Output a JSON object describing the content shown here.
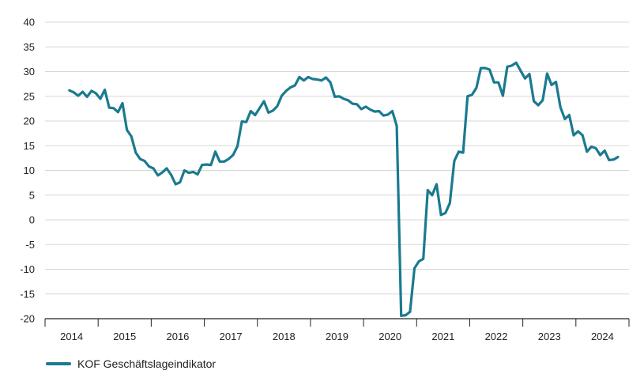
{
  "chart_data": {
    "type": "line",
    "title": "",
    "xlabel": "",
    "ylabel": "",
    "ylim": [
      -20,
      40
    ],
    "yticks": [
      40,
      35,
      30,
      25,
      20,
      15,
      10,
      5,
      0,
      -5,
      -10,
      -15,
      -20
    ],
    "year_labels": [
      "2014",
      "2015",
      "2016",
      "2017",
      "2018",
      "2019",
      "2020",
      "2021",
      "2022",
      "2023",
      "2024"
    ],
    "grid": true,
    "legend_position": "bottom-left",
    "series": [
      {
        "name": "KOF Geschäftslageindikator",
        "color": "#1b7a8f",
        "points": [
          [
            "2013-12",
            26.2
          ],
          [
            "2014-01",
            25.8
          ],
          [
            "2014-02",
            25.1
          ],
          [
            "2014-03",
            25.9
          ],
          [
            "2014-04",
            24.9
          ],
          [
            "2014-05",
            26.1
          ],
          [
            "2014-06",
            25.6
          ],
          [
            "2014-07",
            24.5
          ],
          [
            "2014-08",
            26.3
          ],
          [
            "2014-09",
            22.7
          ],
          [
            "2014-10",
            22.6
          ],
          [
            "2014-11",
            21.8
          ],
          [
            "2014-12",
            23.6
          ],
          [
            "2015-01",
            18.2
          ],
          [
            "2015-02",
            16.9
          ],
          [
            "2015-03",
            13.6
          ],
          [
            "2015-04",
            12.3
          ],
          [
            "2015-05",
            11.9
          ],
          [
            "2015-06",
            10.8
          ],
          [
            "2015-07",
            10.4
          ],
          [
            "2015-08",
            9.0
          ],
          [
            "2015-09",
            9.6
          ],
          [
            "2015-10",
            10.4
          ],
          [
            "2015-11",
            9.1
          ],
          [
            "2015-12",
            7.2
          ],
          [
            "2016-01",
            7.6
          ],
          [
            "2016-02",
            10.0
          ],
          [
            "2016-03",
            9.5
          ],
          [
            "2016-04",
            9.7
          ],
          [
            "2016-05",
            9.2
          ],
          [
            "2016-06",
            11.1
          ],
          [
            "2016-07",
            11.2
          ],
          [
            "2016-08",
            11.1
          ],
          [
            "2016-09",
            13.8
          ],
          [
            "2016-10",
            11.8
          ],
          [
            "2016-11",
            11.8
          ],
          [
            "2016-12",
            12.3
          ],
          [
            "2017-01",
            13.1
          ],
          [
            "2017-02",
            14.9
          ],
          [
            "2017-03",
            19.9
          ],
          [
            "2017-04",
            19.8
          ],
          [
            "2017-05",
            22.0
          ],
          [
            "2017-06",
            21.2
          ],
          [
            "2017-07",
            22.6
          ],
          [
            "2017-08",
            24.0
          ],
          [
            "2017-09",
            21.7
          ],
          [
            "2017-10",
            22.1
          ],
          [
            "2017-11",
            23.0
          ],
          [
            "2017-12",
            25.1
          ],
          [
            "2018-01",
            26.1
          ],
          [
            "2018-02",
            26.8
          ],
          [
            "2018-03",
            27.2
          ],
          [
            "2018-04",
            28.9
          ],
          [
            "2018-05",
            28.2
          ],
          [
            "2018-06",
            28.9
          ],
          [
            "2018-07",
            28.5
          ],
          [
            "2018-08",
            28.4
          ],
          [
            "2018-09",
            28.2
          ],
          [
            "2018-10",
            28.8
          ],
          [
            "2018-11",
            27.8
          ],
          [
            "2018-12",
            24.9
          ],
          [
            "2019-01",
            25.0
          ],
          [
            "2019-02",
            24.5
          ],
          [
            "2019-03",
            24.2
          ],
          [
            "2019-04",
            23.5
          ],
          [
            "2019-05",
            23.4
          ],
          [
            "2019-06",
            22.4
          ],
          [
            "2019-07",
            22.9
          ],
          [
            "2019-08",
            22.3
          ],
          [
            "2019-09",
            21.9
          ],
          [
            "2019-10",
            22.0
          ],
          [
            "2019-11",
            21.1
          ],
          [
            "2019-12",
            21.3
          ],
          [
            "2020-01",
            22.0
          ],
          [
            "2020-02",
            19.0
          ],
          [
            "2020-03",
            -19.4
          ],
          [
            "2020-04",
            -19.3
          ],
          [
            "2020-05",
            -18.6
          ],
          [
            "2020-06",
            -9.8
          ],
          [
            "2020-07",
            -8.4
          ],
          [
            "2020-08",
            -7.9
          ],
          [
            "2020-09",
            6.0
          ],
          [
            "2020-10",
            5.0
          ],
          [
            "2020-11",
            7.2
          ],
          [
            "2020-12",
            1.0
          ],
          [
            "2021-01",
            1.4
          ],
          [
            "2021-02",
            3.4
          ],
          [
            "2021-03",
            11.9
          ],
          [
            "2021-04",
            13.8
          ],
          [
            "2021-05",
            13.6
          ],
          [
            "2021-06",
            25.0
          ],
          [
            "2021-07",
            25.3
          ],
          [
            "2021-08",
            26.7
          ],
          [
            "2021-09",
            30.7
          ],
          [
            "2021-10",
            30.7
          ],
          [
            "2021-11",
            30.4
          ],
          [
            "2021-12",
            27.8
          ],
          [
            "2022-01",
            27.8
          ],
          [
            "2022-02",
            25.1
          ],
          [
            "2022-03",
            31.0
          ],
          [
            "2022-04",
            31.2
          ],
          [
            "2022-05",
            31.8
          ],
          [
            "2022-06",
            30.2
          ],
          [
            "2022-07",
            28.6
          ],
          [
            "2022-08",
            29.5
          ],
          [
            "2022-09",
            24.0
          ],
          [
            "2022-10",
            23.2
          ],
          [
            "2022-11",
            24.2
          ],
          [
            "2022-12",
            29.6
          ],
          [
            "2023-01",
            27.3
          ],
          [
            "2023-02",
            27.9
          ],
          [
            "2023-03",
            22.8
          ],
          [
            "2023-04",
            20.4
          ],
          [
            "2023-05",
            21.2
          ],
          [
            "2023-06",
            17.1
          ],
          [
            "2023-07",
            17.9
          ],
          [
            "2023-08",
            17.1
          ],
          [
            "2023-09",
            13.8
          ],
          [
            "2023-10",
            14.8
          ],
          [
            "2023-11",
            14.5
          ],
          [
            "2023-12",
            13.1
          ],
          [
            "2024-01",
            14.0
          ],
          [
            "2024-02",
            12.1
          ],
          [
            "2024-03",
            12.2
          ],
          [
            "2024-04",
            12.7
          ]
        ]
      }
    ]
  }
}
